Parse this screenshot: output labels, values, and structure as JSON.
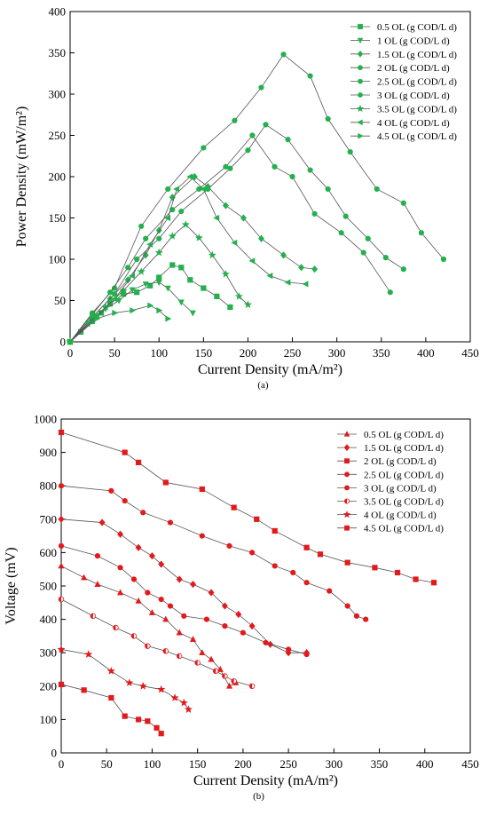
{
  "colors": {
    "green": "#22b14c",
    "red": "#e31a1c",
    "line": "#555555",
    "axis": "#000000"
  },
  "chart_data": [
    {
      "type": "line",
      "panel_label": "(a)",
      "xlabel": "Current Density (mA/m²)",
      "ylabel": "Power Density (mW/m²)",
      "xlim": [
        0,
        450
      ],
      "ylim": [
        0,
        400
      ],
      "xticks": [
        0,
        50,
        100,
        150,
        200,
        250,
        300,
        350,
        400,
        450
      ],
      "yticks": [
        0,
        50,
        100,
        150,
        200,
        250,
        300,
        350,
        400
      ],
      "grid": false,
      "legend_position": "top-right",
      "series": [
        {
          "name": "0.5 OL  (g COD/L d)",
          "marker": "square",
          "points": [
            [
              0,
              0
            ],
            [
              12,
              12
            ],
            [
              25,
              25
            ],
            [
              35,
              35
            ],
            [
              45,
              46
            ],
            [
              60,
              58
            ],
            [
              75,
              60
            ],
            [
              90,
              68
            ],
            [
              100,
              78
            ],
            [
              115,
              93
            ],
            [
              125,
              90
            ],
            [
              135,
              75
            ],
            [
              150,
              65
            ],
            [
              165,
              55
            ],
            [
              180,
              42
            ]
          ]
        },
        {
          "name": "1 OL (g COD/L d)",
          "marker": "triangle-down",
          "points": [
            [
              0,
              0
            ],
            [
              25,
              25
            ],
            [
              40,
              40
            ],
            [
              55,
              50
            ],
            [
              70,
              63
            ],
            [
              85,
              70
            ],
            [
              100,
              72
            ],
            [
              110,
              65
            ],
            [
              125,
              48
            ],
            [
              138,
              35
            ]
          ]
        },
        {
          "name": "1.5 OL (g COD/L d)",
          "marker": "diamond",
          "points": [
            [
              0,
              0
            ],
            [
              25,
              30
            ],
            [
              45,
              52
            ],
            [
              65,
              75
            ],
            [
              85,
              105
            ],
            [
              100,
              135
            ],
            [
              115,
              175
            ],
            [
              140,
              200
            ],
            [
              155,
              188
            ],
            [
              175,
              165
            ],
            [
              195,
              150
            ],
            [
              215,
              125
            ],
            [
              240,
              105
            ],
            [
              260,
              90
            ],
            [
              275,
              88
            ]
          ]
        },
        {
          "name": "2 OL (g COD/L d)",
          "marker": "circle",
          "points": [
            [
              0,
              0
            ],
            [
              25,
              35
            ],
            [
              50,
              65
            ],
            [
              80,
              140
            ],
            [
              110,
              185
            ],
            [
              150,
              235
            ],
            [
              185,
              268
            ],
            [
              215,
              308
            ],
            [
              240,
              348
            ],
            [
              270,
              322
            ],
            [
              290,
              270
            ],
            [
              315,
              230
            ],
            [
              345,
              185
            ],
            [
              375,
              168
            ],
            [
              395,
              132
            ],
            [
              420,
              100
            ]
          ]
        },
        {
          "name": "2.5 OL (g COD/L d)",
          "marker": "circle",
          "points": [
            [
              0,
              0
            ],
            [
              25,
              33
            ],
            [
              45,
              60
            ],
            [
              65,
              90
            ],
            [
              85,
              125
            ],
            [
              115,
              160
            ],
            [
              145,
              185
            ],
            [
              175,
              212
            ],
            [
              205,
              250
            ],
            [
              230,
              212
            ],
            [
              250,
              200
            ],
            [
              275,
              155
            ],
            [
              305,
              132
            ],
            [
              330,
              108
            ],
            [
              360,
              60
            ]
          ]
        },
        {
          "name": "3 OL (g COD/L d)",
          "marker": "circle",
          "points": [
            [
              0,
              0
            ],
            [
              25,
              30
            ],
            [
              50,
              58
            ],
            [
              75,
              100
            ],
            [
              100,
              125
            ],
            [
              125,
              158
            ],
            [
              155,
              185
            ],
            [
              180,
              210
            ],
            [
              200,
              232
            ],
            [
              220,
              263
            ],
            [
              245,
              245
            ],
            [
              270,
              208
            ],
            [
              290,
              185
            ],
            [
              310,
              152
            ],
            [
              335,
              125
            ],
            [
              355,
              102
            ],
            [
              375,
              88
            ]
          ]
        },
        {
          "name": "3.5 OL (g COD/L d)",
          "marker": "star",
          "points": [
            [
              0,
              0
            ],
            [
              20,
              22
            ],
            [
              40,
              42
            ],
            [
              60,
              62
            ],
            [
              80,
              85
            ],
            [
              100,
              108
            ],
            [
              115,
              128
            ],
            [
              130,
              142
            ],
            [
              145,
              126
            ],
            [
              160,
              105
            ],
            [
              175,
              82
            ],
            [
              190,
              55
            ],
            [
              200,
              45
            ]
          ]
        },
        {
          "name": "4 OL (g COD/L d)",
          "marker": "triangle-left",
          "points": [
            [
              0,
              0
            ],
            [
              30,
              32
            ],
            [
              50,
              52
            ],
            [
              70,
              80
            ],
            [
              90,
              118
            ],
            [
              110,
              150
            ],
            [
              120,
              185
            ],
            [
              135,
              200
            ],
            [
              150,
              185
            ],
            [
              165,
              150
            ],
            [
              185,
              120
            ],
            [
              205,
              98
            ],
            [
              225,
              80
            ],
            [
              245,
              72
            ],
            [
              265,
              70
            ]
          ]
        },
        {
          "name": "4.5 OL (g COD/L d)",
          "marker": "triangle-right",
          "points": [
            [
              0,
              0
            ],
            [
              30,
              28
            ],
            [
              50,
              35
            ],
            [
              70,
              38
            ],
            [
              90,
              44
            ],
            [
              100,
              38
            ],
            [
              110,
              28
            ]
          ]
        }
      ]
    },
    {
      "type": "line",
      "panel_label": "(b)",
      "xlabel": "Current Density (mA/m²)",
      "ylabel": "Voltage (mV)",
      "xlim": [
        0,
        450
      ],
      "ylim": [
        0,
        1000
      ],
      "xticks": [
        0,
        50,
        100,
        150,
        200,
        250,
        300,
        350,
        400,
        450
      ],
      "yticks": [
        0,
        100,
        200,
        300,
        400,
        500,
        600,
        700,
        800,
        900,
        1000
      ],
      "grid": false,
      "legend_position": "top-right",
      "series": [
        {
          "name": "0.5 OL (g COD/L d)",
          "marker": "triangle-up",
          "points": [
            [
              0,
              560
            ],
            [
              25,
              525
            ],
            [
              40,
              505
            ],
            [
              65,
              480
            ],
            [
              85,
              455
            ],
            [
              100,
              420
            ],
            [
              115,
              400
            ],
            [
              130,
              360
            ],
            [
              145,
              340
            ],
            [
              155,
              300
            ],
            [
              165,
              280
            ],
            [
              175,
              250
            ],
            [
              185,
              200
            ],
            [
              192,
              210
            ]
          ]
        },
        {
          "name": "1.5 OL (g COD/L d)",
          "marker": "diamond",
          "points": [
            [
              0,
              700
            ],
            [
              45,
              690
            ],
            [
              65,
              655
            ],
            [
              85,
              615
            ],
            [
              100,
              590
            ],
            [
              110,
              565
            ],
            [
              130,
              520
            ],
            [
              145,
              505
            ],
            [
              165,
              480
            ],
            [
              180,
              440
            ],
            [
              195,
              415
            ],
            [
              210,
              380
            ],
            [
              230,
              325
            ],
            [
              250,
              300
            ],
            [
              270,
              300
            ]
          ]
        },
        {
          "name": "2 OL (g COD/L d)",
          "marker": "square",
          "points": [
            [
              0,
              960
            ],
            [
              70,
              900
            ],
            [
              85,
              870
            ],
            [
              115,
              810
            ],
            [
              155,
              790
            ],
            [
              190,
              735
            ],
            [
              215,
              700
            ],
            [
              235,
              665
            ],
            [
              270,
              615
            ],
            [
              285,
              595
            ],
            [
              315,
              570
            ],
            [
              345,
              555
            ],
            [
              370,
              540
            ],
            [
              390,
              520
            ],
            [
              410,
              510
            ]
          ]
        },
        {
          "name": "2.5 OL (g COD/L d)",
          "marker": "circle",
          "points": [
            [
              0,
              800
            ],
            [
              55,
              785
            ],
            [
              70,
              755
            ],
            [
              90,
              720
            ],
            [
              120,
              690
            ],
            [
              155,
              650
            ],
            [
              185,
              620
            ],
            [
              210,
              600
            ],
            [
              235,
              560
            ],
            [
              255,
              540
            ],
            [
              270,
              510
            ],
            [
              295,
              485
            ],
            [
              315,
              440
            ],
            [
              325,
              410
            ],
            [
              335,
              400
            ]
          ]
        },
        {
          "name": "3 OL (g COD/L d)",
          "marker": "circle",
          "points": [
            [
              0,
              620
            ],
            [
              40,
              590
            ],
            [
              65,
              555
            ],
            [
              80,
              520
            ],
            [
              95,
              480
            ],
            [
              110,
              460
            ],
            [
              120,
              440
            ],
            [
              135,
              410
            ],
            [
              160,
              400
            ],
            [
              180,
              380
            ],
            [
              200,
              360
            ],
            [
              225,
              330
            ],
            [
              250,
              310
            ],
            [
              270,
              295
            ]
          ]
        },
        {
          "name": "3.5 OL (g COD/L d)",
          "marker": "half-circle",
          "points": [
            [
              0,
              460
            ],
            [
              35,
              410
            ],
            [
              60,
              375
            ],
            [
              80,
              350
            ],
            [
              95,
              320
            ],
            [
              115,
              305
            ],
            [
              130,
              290
            ],
            [
              150,
              270
            ],
            [
              170,
              245
            ],
            [
              180,
              230
            ],
            [
              190,
              215
            ],
            [
              210,
              200
            ]
          ]
        },
        {
          "name": "4 OL (g COD/L d)",
          "marker": "star",
          "points": [
            [
              0,
              310
            ],
            [
              30,
              295
            ],
            [
              55,
              245
            ],
            [
              75,
              210
            ],
            [
              90,
              200
            ],
            [
              110,
              190
            ],
            [
              125,
              165
            ],
            [
              135,
              150
            ],
            [
              140,
              130
            ]
          ]
        },
        {
          "name": "4.5 OL (g COD/L d)",
          "marker": "square",
          "points": [
            [
              0,
              205
            ],
            [
              25,
              188
            ],
            [
              55,
              165
            ],
            [
              70,
              110
            ],
            [
              85,
              100
            ],
            [
              95,
              95
            ],
            [
              105,
              75
            ],
            [
              110,
              58
            ]
          ]
        }
      ]
    }
  ]
}
